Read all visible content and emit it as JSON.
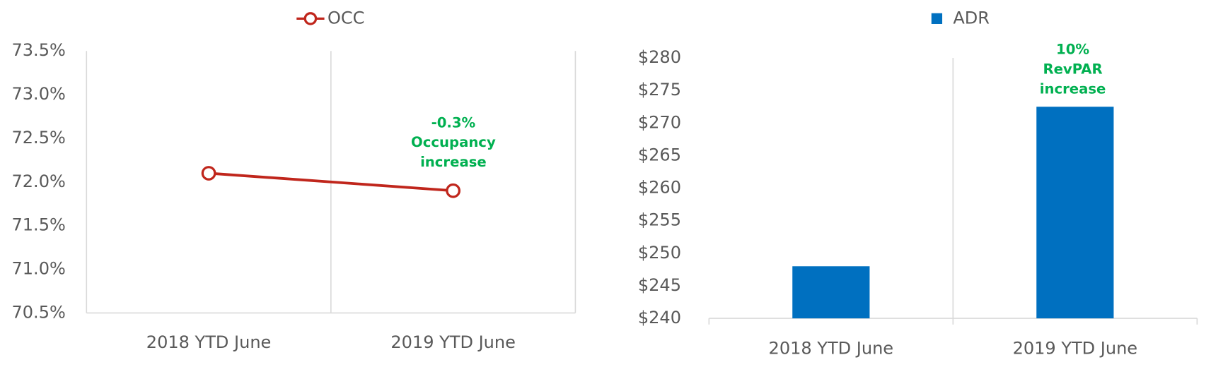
{
  "chart_data": [
    {
      "type": "line",
      "categories": [
        "2018 YTD June",
        "2019 YTD June"
      ],
      "series": [
        {
          "name": "OCC",
          "color": "#c0261c",
          "values": [
            72.1,
            71.9
          ]
        }
      ],
      "ylim": [
        70.5,
        73.5
      ],
      "yticks": [
        {
          "value": 70.5,
          "label": "70.5%"
        },
        {
          "value": 71.0,
          "label": "71.0%"
        },
        {
          "value": 71.5,
          "label": "71.5%"
        },
        {
          "value": 72.0,
          "label": "72.0%"
        },
        {
          "value": 72.5,
          "label": "72.5%"
        },
        {
          "value": 73.0,
          "label": "73.0%"
        },
        {
          "value": 73.5,
          "label": "73.5%"
        }
      ],
      "grid": true,
      "legend": "top",
      "annotation": [
        "-0.3%",
        "Occupancy",
        "increase"
      ]
    },
    {
      "type": "bar",
      "categories": [
        "2018 YTD June",
        "2019 YTD June"
      ],
      "series": [
        {
          "name": "ADR",
          "color": "#0070c0",
          "values": [
            248,
            272.5
          ]
        }
      ],
      "ylim": [
        240,
        280
      ],
      "yticks": [
        {
          "value": 240,
          "label": "$240"
        },
        {
          "value": 245,
          "label": "$245"
        },
        {
          "value": 250,
          "label": "$250"
        },
        {
          "value": 255,
          "label": "$255"
        },
        {
          "value": 260,
          "label": "$260"
        },
        {
          "value": 265,
          "label": "$265"
        },
        {
          "value": 270,
          "label": "$270"
        },
        {
          "value": 275,
          "label": "$275"
        },
        {
          "value": 280,
          "label": "$280"
        }
      ],
      "grid": true,
      "legend": "top",
      "annotation": [
        "10%",
        "RevPAR",
        "increase"
      ]
    }
  ]
}
